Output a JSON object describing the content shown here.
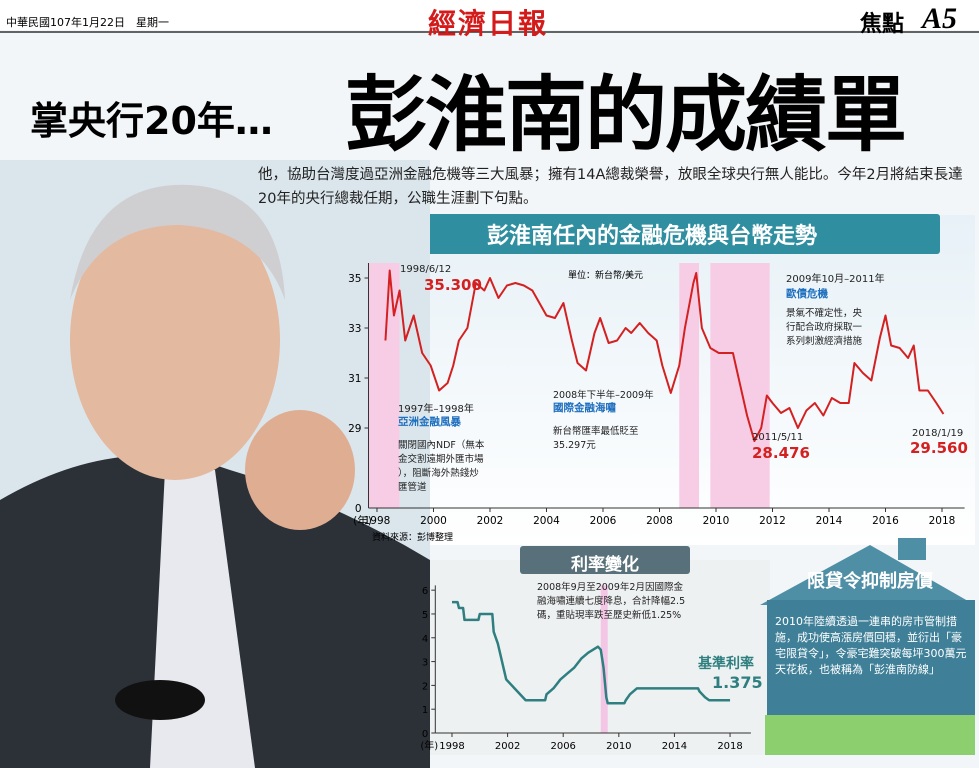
{
  "header": {
    "date": "中華民國107年1月22日　星期一",
    "masthead": "經濟日報",
    "section": "焦點",
    "page": "A5"
  },
  "headline": {
    "kicker": "掌央行20年…",
    "title": "彭淮南的成績單"
  },
  "intro": "他，協助台灣度過亞洲金融危機等三大風暴；擁有14A總裁榮譽，放眼全球央行無人能比。今年2月將結束長達20年的央行總裁任期，公職生涯劃下句點。",
  "chart_data": [
    {
      "type": "line",
      "title": "彭淮南任內的金融危機與台幣走勢",
      "unit_note": "單位：新台幣/美元",
      "source": "資料來源：彭博整理",
      "x_label": "(年)",
      "y_break_label": "0",
      "color": "#d42020",
      "band_color": "#f7cde6",
      "xlim": [
        1997.7,
        2018.8
      ],
      "xticks": [
        1998,
        2000,
        2002,
        2004,
        2006,
        2008,
        2010,
        2012,
        2014,
        2016,
        2018
      ],
      "ylim": [
        25.8,
        35.6
      ],
      "yticks": [
        29,
        31,
        33,
        35
      ],
      "bands": [
        [
          1997.7,
          1998.8
        ],
        [
          2008.7,
          2009.4
        ],
        [
          2009.8,
          2011.9
        ]
      ],
      "x": [
        1998.3,
        1998.45,
        1998.6,
        1998.8,
        1999.0,
        1999.3,
        1999.6,
        1999.9,
        2000.2,
        2000.5,
        2000.7,
        2000.9,
        2001.2,
        2001.5,
        2001.8,
        2002.0,
        2002.3,
        2002.6,
        2002.9,
        2003.2,
        2003.5,
        2003.8,
        2004.0,
        2004.3,
        2004.6,
        2004.9,
        2005.1,
        2005.4,
        2005.7,
        2005.9,
        2006.2,
        2006.5,
        2006.8,
        2007.0,
        2007.3,
        2007.6,
        2007.9,
        2008.1,
        2008.4,
        2008.7,
        2008.9,
        2009.2,
        2009.3,
        2009.5,
        2009.8,
        2010.1,
        2010.4,
        2010.6,
        2010.9,
        2011.1,
        2011.36,
        2011.6,
        2011.8,
        2012.0,
        2012.3,
        2012.6,
        2012.9,
        2013.2,
        2013.5,
        2013.8,
        2014.1,
        2014.4,
        2014.7,
        2014.9,
        2015.2,
        2015.5,
        2015.8,
        2016.0,
        2016.2,
        2016.5,
        2016.8,
        2017.0,
        2017.2,
        2017.5,
        2017.8,
        2018.05
      ],
      "values": [
        32.5,
        35.3,
        33.5,
        34.5,
        32.5,
        33.5,
        32.0,
        31.5,
        30.5,
        30.8,
        31.5,
        32.5,
        33.0,
        34.8,
        34.5,
        35.0,
        34.2,
        34.7,
        34.8,
        34.7,
        34.5,
        33.9,
        33.5,
        33.4,
        34.0,
        32.5,
        31.6,
        31.3,
        32.8,
        33.4,
        32.4,
        32.5,
        33.0,
        32.8,
        33.2,
        32.8,
        32.5,
        31.5,
        30.4,
        31.5,
        33.0,
        34.8,
        35.2,
        33.0,
        32.2,
        32.0,
        32.0,
        32.0,
        30.5,
        29.5,
        28.476,
        29.0,
        30.3,
        30.0,
        29.6,
        29.8,
        29.0,
        29.7,
        30.0,
        29.5,
        30.2,
        30.0,
        30.0,
        31.6,
        31.2,
        30.9,
        32.6,
        33.5,
        32.3,
        32.2,
        31.8,
        32.3,
        30.5,
        30.5,
        30.0,
        29.56
      ],
      "annotations": [
        "1998/6/12",
        "35.300",
        "2011/5/11",
        "28.476",
        "2018/1/19",
        "29.560",
        "1997年–1998年",
        "亞洲金融風暴",
        "關閉國內NDF（無本",
        "金交割遠期外匯市場",
        "），阻斷海外熱錢炒",
        "匯管道",
        "2008年下半年–2009年",
        "國際金融海嘯",
        "新台幣匯率最低貶至",
        "35.297元",
        "2009年10月–2011年",
        "歐債危機",
        "景氣不確定性，央",
        "行配合政府採取一",
        "系列刺激經濟措施"
      ]
    },
    {
      "type": "line",
      "title": "利率變化",
      "x_label": "(年)",
      "color": "#2f7f80",
      "band_color": "#f4c6e6",
      "xlim": [
        1996.8,
        2019.5
      ],
      "xticks": [
        1998,
        2002,
        2006,
        2010,
        2014,
        2018
      ],
      "ylim": [
        0,
        6.2
      ],
      "yticks": [
        0,
        1,
        2,
        3,
        4,
        5,
        6
      ],
      "bands": [
        [
          2008.7,
          2009.2
        ]
      ],
      "x": [
        1998.0,
        1998.4,
        1998.5,
        1998.8,
        1998.9,
        1999.9,
        2000.0,
        2000.9,
        2001.0,
        2001.3,
        2001.5,
        2001.7,
        2001.9,
        2002.5,
        2003.3,
        2004.7,
        2004.8,
        2005.3,
        2005.8,
        2006.3,
        2006.8,
        2007.3,
        2007.8,
        2008.5,
        2008.7,
        2008.9,
        2009.1,
        2009.2,
        2010.4,
        2010.5,
        2010.8,
        2011.3,
        2015.7,
        2015.8,
        2016.0,
        2016.2,
        2016.5,
        2018.0
      ],
      "values": [
        5.5,
        5.5,
        5.25,
        5.25,
        4.75,
        4.75,
        5.0,
        5.0,
        4.25,
        3.75,
        3.25,
        2.75,
        2.25,
        1.875,
        1.375,
        1.375,
        1.625,
        1.875,
        2.25,
        2.5,
        2.75,
        3.125,
        3.375,
        3.625,
        3.5,
        2.75,
        1.5,
        1.25,
        1.25,
        1.375,
        1.625,
        1.875,
        1.875,
        1.75,
        1.625,
        1.5,
        1.375,
        1.375
      ],
      "annotations": [
        "2008年9月至2009年2月因國際金",
        "融海嘯連續七度降息，合計降幅2.5",
        "碼，重貼現率跌至歷史新低1.25%",
        "基準利率",
        "1.375"
      ]
    }
  ],
  "sidebar": {
    "title": "限貸令抑制房價",
    "body": "2010年陸續透過一連串的房市管制措施，成功使高漲房價回穩，並衍出「豪宅限貸令」，令豪宅難突破每坪300萬元天花板，也被稱為「彭淮南防線」"
  }
}
